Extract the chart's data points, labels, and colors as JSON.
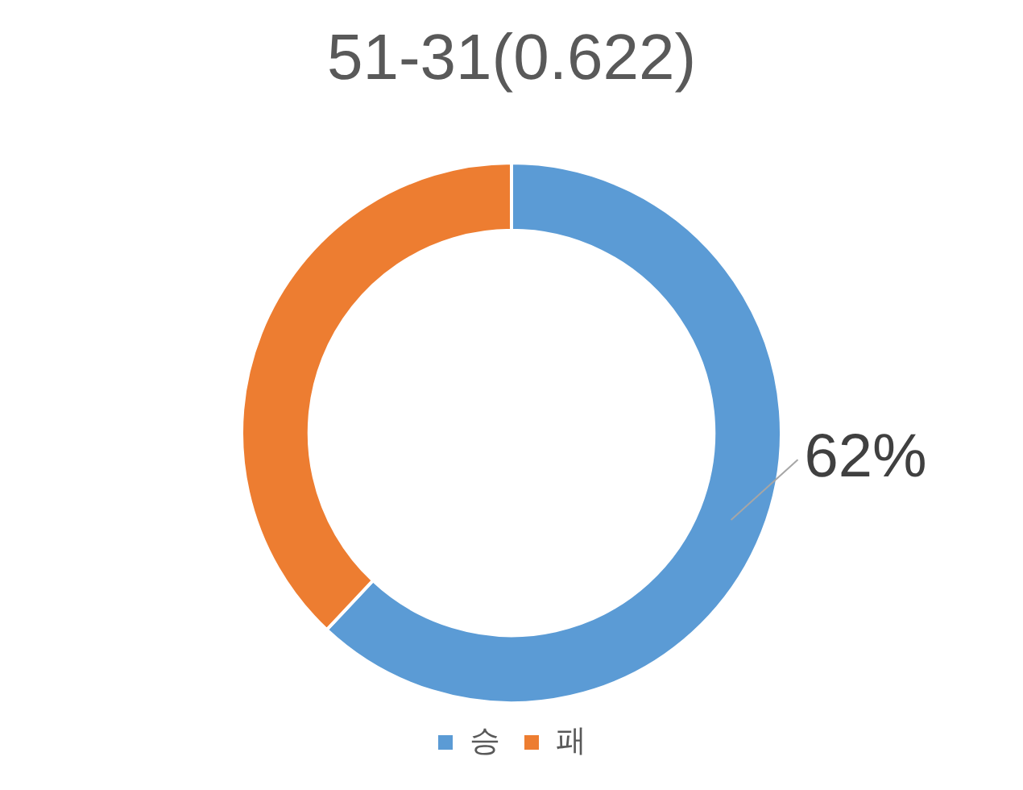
{
  "chart_data": {
    "type": "donut",
    "title": "51-31(0.622)",
    "categories": [
      "승",
      "패"
    ],
    "values": [
      62,
      38
    ],
    "colors": [
      "#5b9bd5",
      "#ed7d31"
    ],
    "value_labels": [
      "62%",
      null
    ],
    "legend": "bottom"
  }
}
